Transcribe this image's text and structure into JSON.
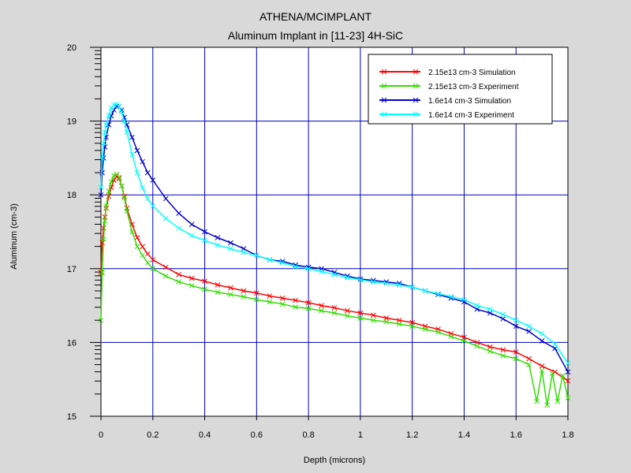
{
  "chart_data": {
    "type": "line",
    "title": "ATHENA/MCIMPLANT",
    "subtitle": "Aluminum Implant in [11-23] 4H-SiC",
    "xlabel": "Depth (microns)",
    "ylabel": "Aluminum (cm-3)",
    "xlim": [
      0,
      1.8
    ],
    "ylim": [
      15,
      20
    ],
    "xticks": [
      "0",
      "0.2",
      "0.4",
      "0.6",
      "0.8",
      "1",
      "1.2",
      "1.4",
      "1.6",
      "1.8"
    ],
    "yticks": [
      "15",
      "16",
      "17",
      "18",
      "19",
      "20"
    ],
    "grid": true,
    "legend_position": "top-right",
    "series": [
      {
        "name": "2.15e13 cm-3 Simulation",
        "color": "#ff0000",
        "x": [
          0.0,
          0.005,
          0.01,
          0.015,
          0.02,
          0.03,
          0.04,
          0.05,
          0.06,
          0.07,
          0.08,
          0.09,
          0.1,
          0.12,
          0.14,
          0.16,
          0.18,
          0.2,
          0.25,
          0.3,
          0.35,
          0.4,
          0.45,
          0.5,
          0.55,
          0.6,
          0.65,
          0.7,
          0.75,
          0.8,
          0.85,
          0.9,
          0.95,
          1.0,
          1.05,
          1.1,
          1.15,
          1.2,
          1.25,
          1.3,
          1.35,
          1.4,
          1.45,
          1.5,
          1.55,
          1.6,
          1.65,
          1.7,
          1.75,
          1.8
        ],
        "y": [
          16.95,
          17.35,
          17.55,
          17.7,
          17.82,
          17.98,
          18.1,
          18.2,
          18.25,
          18.22,
          18.12,
          17.98,
          17.82,
          17.6,
          17.42,
          17.3,
          17.2,
          17.12,
          17.02,
          16.92,
          16.87,
          16.83,
          16.78,
          16.74,
          16.7,
          16.67,
          16.63,
          16.6,
          16.57,
          16.54,
          16.5,
          16.47,
          16.43,
          16.4,
          16.37,
          16.33,
          16.3,
          16.27,
          16.22,
          16.18,
          16.12,
          16.07,
          16.0,
          15.94,
          15.9,
          15.87,
          15.78,
          15.68,
          15.6,
          15.48
        ]
      },
      {
        "name": "2.15e13 cm-3 Experiment",
        "color": "#33dd00",
        "x": [
          0.0,
          0.005,
          0.01,
          0.015,
          0.02,
          0.03,
          0.04,
          0.05,
          0.06,
          0.07,
          0.08,
          0.09,
          0.1,
          0.12,
          0.14,
          0.16,
          0.18,
          0.2,
          0.25,
          0.3,
          0.35,
          0.4,
          0.45,
          0.5,
          0.55,
          0.6,
          0.65,
          0.7,
          0.75,
          0.8,
          0.85,
          0.9,
          0.95,
          1.0,
          1.05,
          1.1,
          1.15,
          1.2,
          1.25,
          1.3,
          1.35,
          1.4,
          1.45,
          1.5,
          1.55,
          1.6,
          1.65,
          1.68,
          1.7,
          1.72,
          1.74,
          1.76,
          1.78,
          1.8
        ],
        "y": [
          16.3,
          16.95,
          17.4,
          17.65,
          17.85,
          18.05,
          18.18,
          18.26,
          18.28,
          18.24,
          18.12,
          17.96,
          17.78,
          17.5,
          17.3,
          17.18,
          17.08,
          17.0,
          16.9,
          16.82,
          16.77,
          16.72,
          16.68,
          16.65,
          16.62,
          16.58,
          16.55,
          16.52,
          16.48,
          16.46,
          16.43,
          16.4,
          16.36,
          16.33,
          16.3,
          16.28,
          16.25,
          16.22,
          16.18,
          16.14,
          16.08,
          16.02,
          15.95,
          15.88,
          15.82,
          15.78,
          15.7,
          15.2,
          15.62,
          15.15,
          15.58,
          15.2,
          15.55,
          15.25
        ]
      },
      {
        "name": "1.6e14 cm-3 Simulation",
        "color": "#0000cc",
        "x": [
          0.0,
          0.005,
          0.01,
          0.015,
          0.02,
          0.03,
          0.04,
          0.05,
          0.06,
          0.07,
          0.08,
          0.09,
          0.1,
          0.12,
          0.14,
          0.16,
          0.18,
          0.2,
          0.25,
          0.3,
          0.35,
          0.4,
          0.45,
          0.5,
          0.55,
          0.6,
          0.65,
          0.7,
          0.75,
          0.8,
          0.85,
          0.9,
          0.95,
          1.0,
          1.05,
          1.1,
          1.15,
          1.2,
          1.25,
          1.3,
          1.35,
          1.4,
          1.45,
          1.5,
          1.55,
          1.6,
          1.65,
          1.7,
          1.75,
          1.8
        ],
        "y": [
          18.0,
          18.3,
          18.5,
          18.65,
          18.78,
          18.95,
          19.07,
          19.15,
          19.2,
          19.2,
          19.15,
          19.05,
          18.95,
          18.78,
          18.6,
          18.45,
          18.3,
          18.2,
          17.95,
          17.75,
          17.6,
          17.5,
          17.42,
          17.35,
          17.27,
          17.18,
          17.12,
          17.1,
          17.05,
          17.02,
          17.0,
          16.95,
          16.9,
          16.86,
          16.84,
          16.82,
          16.8,
          16.75,
          16.7,
          16.65,
          16.6,
          16.55,
          16.45,
          16.4,
          16.32,
          16.22,
          16.15,
          16.02,
          15.92,
          15.6
        ]
      },
      {
        "name": "1.6e14 cm-3 Experiment",
        "color": "#00ffff",
        "x": [
          0.0,
          0.005,
          0.01,
          0.015,
          0.02,
          0.03,
          0.04,
          0.05,
          0.06,
          0.07,
          0.08,
          0.09,
          0.1,
          0.12,
          0.14,
          0.16,
          0.18,
          0.2,
          0.25,
          0.3,
          0.35,
          0.4,
          0.45,
          0.5,
          0.55,
          0.6,
          0.65,
          0.7,
          0.75,
          0.8,
          0.85,
          0.9,
          0.95,
          1.0,
          1.05,
          1.1,
          1.15,
          1.2,
          1.25,
          1.3,
          1.35,
          1.4,
          1.45,
          1.5,
          1.55,
          1.6,
          1.65,
          1.7,
          1.75,
          1.8
        ],
        "y": [
          18.1,
          18.5,
          18.7,
          18.85,
          18.95,
          19.08,
          19.18,
          19.22,
          19.23,
          19.2,
          19.12,
          19.0,
          18.85,
          18.55,
          18.3,
          18.1,
          17.95,
          17.85,
          17.68,
          17.55,
          17.45,
          17.38,
          17.32,
          17.27,
          17.22,
          17.18,
          17.12,
          17.08,
          17.03,
          17.0,
          16.96,
          16.92,
          16.88,
          16.85,
          16.82,
          16.8,
          16.78,
          16.75,
          16.7,
          16.66,
          16.62,
          16.58,
          16.5,
          16.45,
          16.38,
          16.3,
          16.22,
          16.12,
          15.98,
          15.72
        ]
      }
    ]
  }
}
